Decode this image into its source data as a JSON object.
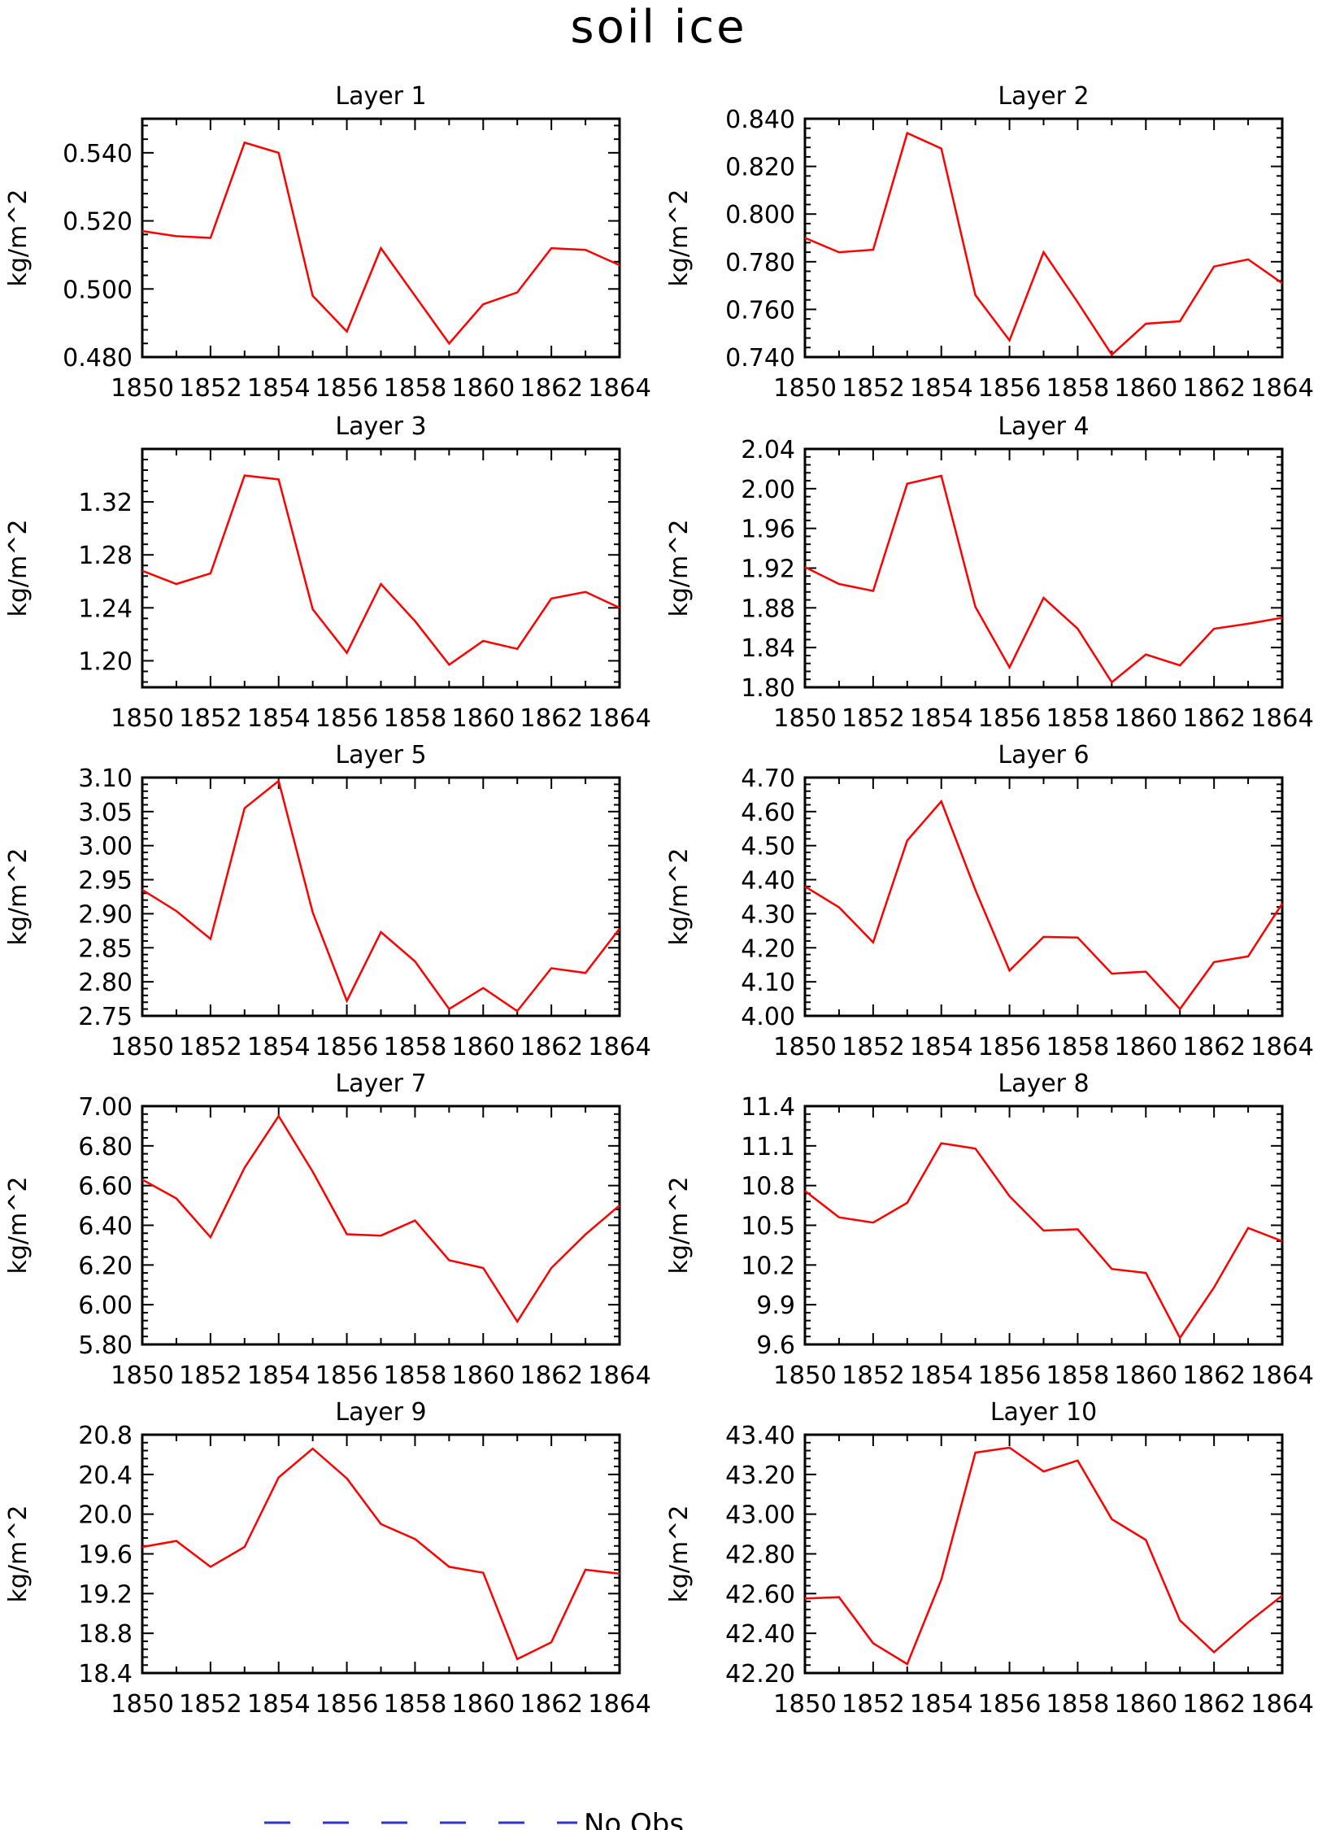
{
  "figure": {
    "title": "soil ice",
    "legend_label": "No Obs",
    "line_color": "#ff0000",
    "legend_color": "#3333cc"
  },
  "chart_data": [
    {
      "type": "line",
      "title": "Layer 1",
      "xlabel": "",
      "ylabel": "kg/m^2",
      "x": [
        1850,
        1851,
        1852,
        1853,
        1854,
        1855,
        1856,
        1857,
        1858,
        1859,
        1860,
        1861,
        1862,
        1863,
        1864
      ],
      "xlim": [
        1850,
        1864
      ],
      "xticks": [
        "1850",
        "1852",
        "1854",
        "1856",
        "1858",
        "1860",
        "1862",
        "1864"
      ],
      "ylim": [
        0.48,
        0.55
      ],
      "yticks": [
        "0.480",
        "0.500",
        "0.520",
        "0.540"
      ],
      "grid": false,
      "series": [
        {
          "values": [
            0.517,
            0.5155,
            0.515,
            0.543,
            0.54,
            0.498,
            0.4875,
            0.512,
            0.498,
            0.484,
            0.4955,
            0.499,
            0.512,
            0.5115,
            0.507
          ]
        }
      ]
    },
    {
      "type": "line",
      "title": "Layer 2",
      "xlabel": "",
      "ylabel": "kg/m^2",
      "x": [
        1850,
        1851,
        1852,
        1853,
        1854,
        1855,
        1856,
        1857,
        1858,
        1859,
        1860,
        1861,
        1862,
        1863,
        1864
      ],
      "xlim": [
        1850,
        1864
      ],
      "xticks": [
        "1850",
        "1852",
        "1854",
        "1856",
        "1858",
        "1860",
        "1862",
        "1864"
      ],
      "ylim": [
        0.74,
        0.84
      ],
      "yticks": [
        "0.740",
        "0.760",
        "0.780",
        "0.800",
        "0.820",
        "0.840"
      ],
      "grid": false,
      "series": [
        {
          "values": [
            0.79,
            0.784,
            0.785,
            0.834,
            0.8275,
            0.766,
            0.747,
            0.784,
            0.763,
            0.741,
            0.754,
            0.755,
            0.778,
            0.781,
            0.771
          ]
        }
      ]
    },
    {
      "type": "line",
      "title": "Layer 3",
      "xlabel": "",
      "ylabel": "kg/m^2",
      "x": [
        1850,
        1851,
        1852,
        1853,
        1854,
        1855,
        1856,
        1857,
        1858,
        1859,
        1860,
        1861,
        1862,
        1863,
        1864
      ],
      "xlim": [
        1850,
        1864
      ],
      "xticks": [
        "1850",
        "1852",
        "1854",
        "1856",
        "1858",
        "1860",
        "1862",
        "1864"
      ],
      "ylim": [
        1.18,
        1.36
      ],
      "yticks": [
        "1.20",
        "1.24",
        "1.28",
        "1.32"
      ],
      "grid": false,
      "series": [
        {
          "values": [
            1.268,
            1.258,
            1.266,
            1.34,
            1.337,
            1.239,
            1.206,
            1.258,
            1.23,
            1.197,
            1.215,
            1.209,
            1.247,
            1.252,
            1.24
          ]
        }
      ]
    },
    {
      "type": "line",
      "title": "Layer 4",
      "xlabel": "",
      "ylabel": "kg/m^2",
      "x": [
        1850,
        1851,
        1852,
        1853,
        1854,
        1855,
        1856,
        1857,
        1858,
        1859,
        1860,
        1861,
        1862,
        1863,
        1864
      ],
      "xlim": [
        1850,
        1864
      ],
      "xticks": [
        "1850",
        "1852",
        "1854",
        "1856",
        "1858",
        "1860",
        "1862",
        "1864"
      ],
      "ylim": [
        1.8,
        2.04
      ],
      "yticks": [
        "1.80",
        "1.84",
        "1.88",
        "1.92",
        "1.96",
        "2.00",
        "2.04"
      ],
      "grid": false,
      "series": [
        {
          "values": [
            1.921,
            1.904,
            1.897,
            2.005,
            2.013,
            1.881,
            1.82,
            1.89,
            1.859,
            1.805,
            1.833,
            1.822,
            1.859,
            1.864,
            1.87
          ]
        }
      ]
    },
    {
      "type": "line",
      "title": "Layer 5",
      "xlabel": "",
      "ylabel": "kg/m^2",
      "x": [
        1850,
        1851,
        1852,
        1853,
        1854,
        1855,
        1856,
        1857,
        1858,
        1859,
        1860,
        1861,
        1862,
        1863,
        1864
      ],
      "xlim": [
        1850,
        1864
      ],
      "xticks": [
        "1850",
        "1852",
        "1854",
        "1856",
        "1858",
        "1860",
        "1862",
        "1864"
      ],
      "ylim": [
        2.75,
        3.1
      ],
      "yticks": [
        "2.75",
        "2.80",
        "2.85",
        "2.90",
        "2.95",
        "3.00",
        "3.05",
        "3.10"
      ],
      "grid": false,
      "series": [
        {
          "values": [
            2.935,
            2.904,
            2.863,
            3.055,
            3.095,
            2.902,
            2.772,
            2.873,
            2.83,
            2.76,
            2.791,
            2.757,
            2.82,
            2.813,
            2.878
          ]
        }
      ]
    },
    {
      "type": "line",
      "title": "Layer 6",
      "xlabel": "",
      "ylabel": "kg/m^2",
      "x": [
        1850,
        1851,
        1852,
        1853,
        1854,
        1855,
        1856,
        1857,
        1858,
        1859,
        1860,
        1861,
        1862,
        1863,
        1864
      ],
      "xlim": [
        1850,
        1864
      ],
      "xticks": [
        "1850",
        "1852",
        "1854",
        "1856",
        "1858",
        "1860",
        "1862",
        "1864"
      ],
      "ylim": [
        4.0,
        4.7
      ],
      "yticks": [
        "4.00",
        "4.10",
        "4.20",
        "4.30",
        "4.40",
        "4.50",
        "4.60",
        "4.70"
      ],
      "grid": false,
      "series": [
        {
          "values": [
            4.38,
            4.319,
            4.216,
            4.515,
            4.63,
            4.37,
            4.133,
            4.232,
            4.23,
            4.124,
            4.13,
            4.02,
            4.158,
            4.175,
            4.33
          ]
        }
      ]
    },
    {
      "type": "line",
      "title": "Layer 7",
      "xlabel": "",
      "ylabel": "kg/m^2",
      "x": [
        1850,
        1851,
        1852,
        1853,
        1854,
        1855,
        1856,
        1857,
        1858,
        1859,
        1860,
        1861,
        1862,
        1863,
        1864
      ],
      "xlim": [
        1850,
        1864
      ],
      "xticks": [
        "1850",
        "1852",
        "1854",
        "1856",
        "1858",
        "1860",
        "1862",
        "1864"
      ],
      "ylim": [
        5.8,
        7.0
      ],
      "yticks": [
        "5.80",
        "6.00",
        "6.20",
        "6.40",
        "6.60",
        "6.80",
        "7.00"
      ],
      "grid": false,
      "series": [
        {
          "values": [
            6.63,
            6.535,
            6.34,
            6.69,
            6.95,
            6.67,
            6.355,
            6.348,
            6.424,
            6.224,
            6.185,
            5.915,
            6.185,
            6.354,
            6.5
          ]
        }
      ]
    },
    {
      "type": "line",
      "title": "Layer 8",
      "xlabel": "",
      "ylabel": "kg/m^2",
      "x": [
        1850,
        1851,
        1852,
        1853,
        1854,
        1855,
        1856,
        1857,
        1858,
        1859,
        1860,
        1861,
        1862,
        1863,
        1864
      ],
      "xlim": [
        1850,
        1864
      ],
      "xticks": [
        "1850",
        "1852",
        "1854",
        "1856",
        "1858",
        "1860",
        "1862",
        "1864"
      ],
      "ylim": [
        9.6,
        11.4
      ],
      "yticks": [
        "9.6",
        "9.9",
        "10.2",
        "10.5",
        "10.8",
        "11.1",
        "11.4"
      ],
      "grid": false,
      "series": [
        {
          "values": [
            10.76,
            10.56,
            10.52,
            10.67,
            11.12,
            11.08,
            10.72,
            10.46,
            10.47,
            10.17,
            10.14,
            9.65,
            10.03,
            10.48,
            10.38
          ]
        }
      ]
    },
    {
      "type": "line",
      "title": "Layer 9",
      "xlabel": "",
      "ylabel": "kg/m^2",
      "x": [
        1850,
        1851,
        1852,
        1853,
        1854,
        1855,
        1856,
        1857,
        1858,
        1859,
        1860,
        1861,
        1862,
        1863,
        1864
      ],
      "xlim": [
        1850,
        1864
      ],
      "xticks": [
        "1850",
        "1852",
        "1854",
        "1856",
        "1858",
        "1860",
        "1862",
        "1864"
      ],
      "ylim": [
        18.4,
        20.8
      ],
      "yticks": [
        "18.4",
        "18.8",
        "19.2",
        "19.6",
        "20.0",
        "20.4",
        "20.8"
      ],
      "grid": false,
      "series": [
        {
          "values": [
            19.67,
            19.73,
            19.47,
            19.67,
            20.37,
            20.66,
            20.36,
            19.9,
            19.75,
            19.47,
            19.41,
            18.54,
            18.71,
            19.44,
            19.4
          ]
        }
      ]
    },
    {
      "type": "line",
      "title": "Layer 10",
      "xlabel": "",
      "ylabel": "kg/m^2",
      "x": [
        1850,
        1851,
        1852,
        1853,
        1854,
        1855,
        1856,
        1857,
        1858,
        1859,
        1860,
        1861,
        1862,
        1863,
        1864
      ],
      "xlim": [
        1850,
        1864
      ],
      "xticks": [
        "1850",
        "1852",
        "1854",
        "1856",
        "1858",
        "1860",
        "1862",
        "1864"
      ],
      "ylim": [
        42.2,
        43.4
      ],
      "yticks": [
        "42.20",
        "42.40",
        "42.60",
        "42.80",
        "43.00",
        "43.20",
        "43.40"
      ],
      "grid": false,
      "series": [
        {
          "values": [
            42.575,
            42.582,
            42.35,
            42.245,
            42.67,
            43.31,
            43.335,
            43.215,
            43.27,
            42.975,
            42.87,
            42.465,
            42.305,
            42.455,
            42.59
          ]
        }
      ]
    }
  ]
}
